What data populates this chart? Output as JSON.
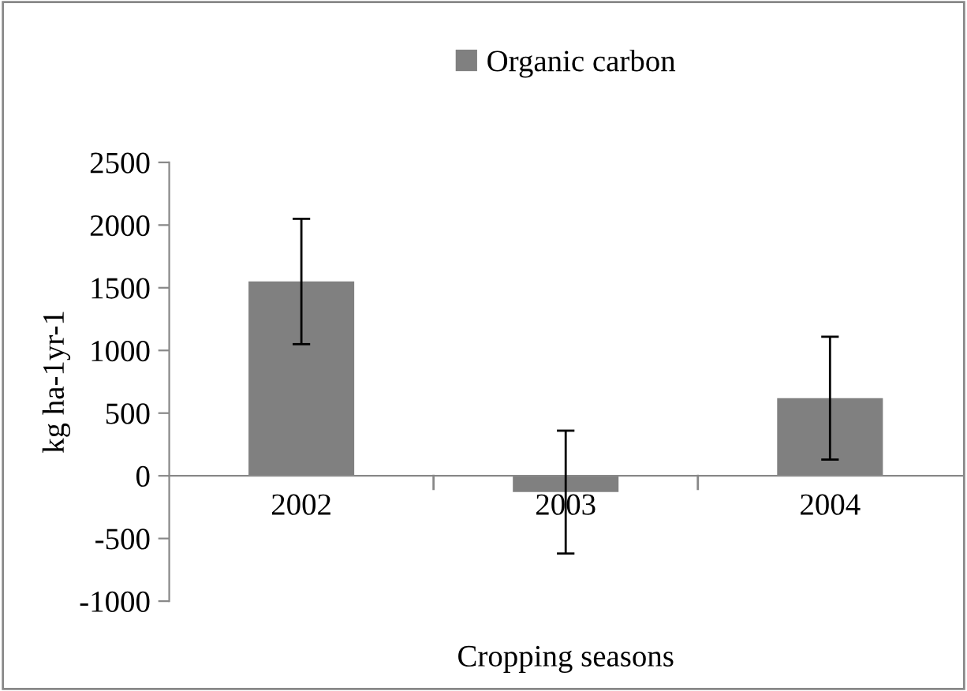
{
  "chart_data": {
    "type": "bar",
    "xlabel": "Cropping seasons",
    "ylabel": "kg ha-1yr-1",
    "categories": [
      "2002",
      "2003",
      "2004"
    ],
    "series": [
      {
        "name": "Organic carbon",
        "color": "#808080",
        "values": [
          1550,
          -130,
          620
        ],
        "errors": [
          500,
          490,
          490
        ]
      }
    ],
    "ylim": [
      -1000,
      2500
    ],
    "yticks": [
      -1000,
      -500,
      0,
      500,
      1000,
      1500,
      2000,
      2500
    ],
    "grid": false,
    "legend": "top"
  }
}
